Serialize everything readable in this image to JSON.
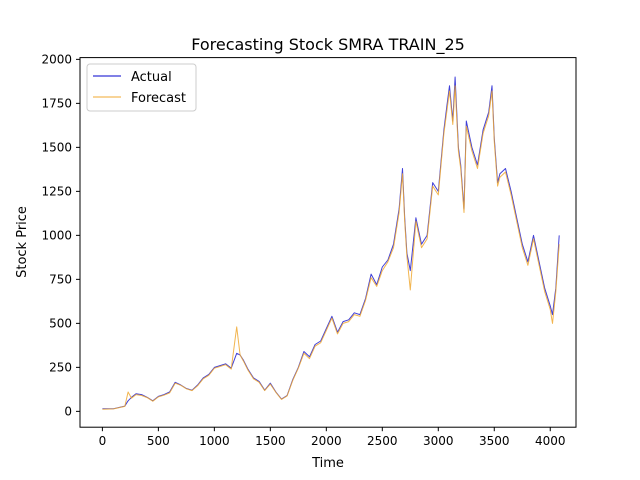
{
  "chart_data": {
    "type": "line",
    "title": "Forecasting Stock SMRA TRAIN_25",
    "xlabel": "Time",
    "ylabel": "Stock Price",
    "xlim": [
      -200,
      4230
    ],
    "ylim": [
      -90,
      2010
    ],
    "xticks": [
      0,
      500,
      1000,
      1500,
      2000,
      2500,
      3000,
      3500,
      4000
    ],
    "yticks": [
      0,
      250,
      500,
      750,
      1000,
      1250,
      1500,
      1750,
      2000
    ],
    "grid": false,
    "legend_position": "top-left",
    "colors": {
      "Actual": "#0000cc",
      "Forecast": "#f0a830"
    },
    "x": [
      0,
      100,
      200,
      230,
      260,
      300,
      350,
      400,
      450,
      500,
      550,
      600,
      650,
      700,
      750,
      800,
      850,
      900,
      950,
      1000,
      1050,
      1100,
      1150,
      1200,
      1230,
      1260,
      1300,
      1350,
      1400,
      1450,
      1500,
      1550,
      1600,
      1650,
      1700,
      1750,
      1800,
      1850,
      1900,
      1950,
      2000,
      2050,
      2100,
      2150,
      2200,
      2250,
      2300,
      2350,
      2400,
      2450,
      2500,
      2550,
      2600,
      2650,
      2680,
      2700,
      2720,
      2750,
      2800,
      2850,
      2900,
      2950,
      3000,
      3050,
      3080,
      3100,
      3130,
      3150,
      3180,
      3200,
      3230,
      3250,
      3300,
      3350,
      3400,
      3450,
      3480,
      3500,
      3530,
      3550,
      3600,
      3650,
      3700,
      3750,
      3800,
      3850,
      3900,
      3950,
      4000,
      4020,
      4050,
      4080
    ],
    "series": [
      {
        "name": "Actual",
        "values": [
          15,
          15,
          30,
          60,
          80,
          100,
          95,
          80,
          60,
          85,
          95,
          110,
          165,
          150,
          130,
          120,
          150,
          190,
          210,
          250,
          260,
          270,
          245,
          330,
          320,
          290,
          240,
          190,
          170,
          120,
          160,
          110,
          70,
          90,
          180,
          250,
          340,
          310,
          380,
          400,
          470,
          540,
          450,
          510,
          520,
          560,
          550,
          640,
          780,
          720,
          820,
          860,
          950,
          1150,
          1380,
          1100,
          900,
          800,
          1100,
          950,
          1000,
          1300,
          1250,
          1600,
          1750,
          1850,
          1650,
          1900,
          1500,
          1400,
          1150,
          1650,
          1500,
          1400,
          1600,
          1700,
          1850,
          1550,
          1300,
          1350,
          1380,
          1250,
          1100,
          950,
          850,
          1000,
          850,
          700,
          600,
          550,
          700,
          1000
        ]
      },
      {
        "name": "Forecast",
        "values": [
          12,
          14,
          28,
          110,
          75,
          95,
          90,
          78,
          58,
          82,
          92,
          105,
          160,
          148,
          128,
          118,
          145,
          185,
          205,
          245,
          255,
          265,
          240,
          480,
          320,
          285,
          235,
          185,
          165,
          118,
          155,
          108,
          68,
          88,
          175,
          245,
          330,
          300,
          370,
          390,
          460,
          530,
          440,
          500,
          510,
          550,
          540,
          630,
          760,
          710,
          800,
          850,
          930,
          1130,
          1350,
          1080,
          880,
          690,
          1080,
          930,
          980,
          1280,
          1230,
          1580,
          1720,
          1820,
          1630,
          1850,
          1480,
          1380,
          1130,
          1620,
          1480,
          1380,
          1580,
          1680,
          1820,
          1530,
          1280,
          1330,
          1360,
          1230,
          1080,
          930,
          830,
          980,
          830,
          680,
          580,
          500,
          680,
          950
        ]
      }
    ]
  }
}
